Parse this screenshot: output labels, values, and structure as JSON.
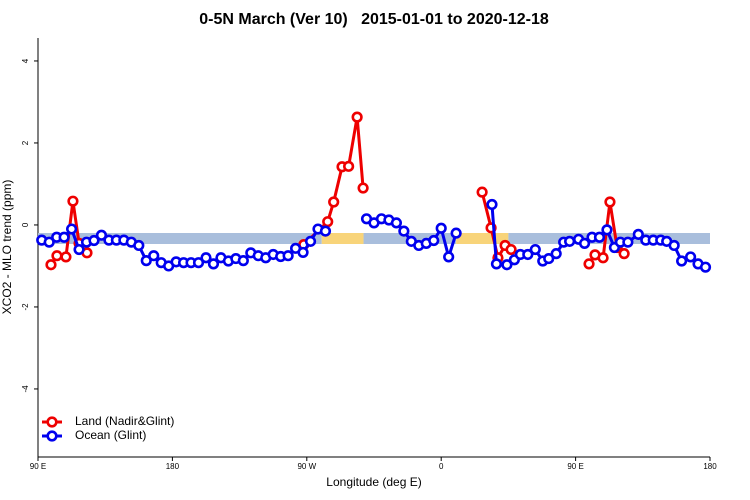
{
  "chart_data": {
    "type": "line",
    "title": "0-5N March (Ver 10)   2015-01-01 to 2020-12-18",
    "x_label": "Longitude (deg E)",
    "y_label": "XCO2 - MLO trend (ppm)",
    "xlim": [
      90,
      540
    ],
    "ylim": [
      -5.66,
      4.56
    ],
    "xticks": [
      {
        "value": 90,
        "label": "90 E"
      },
      180,
      {
        "value": 270,
        "label": "90 W"
      },
      {
        "value": 360,
        "label": "0"
      },
      {
        "value": 450,
        "label": "90 E"
      },
      {
        "value": 540,
        "label": "180"
      }
    ],
    "yticks": [
      -4,
      -2,
      0,
      2,
      4
    ],
    "legend": "bottom-left",
    "background_band": {
      "value": -0.33,
      "segments": [
        {
          "from": 90,
          "to": 280,
          "color": "#a9bedc"
        },
        {
          "from": 280,
          "to": 308,
          "color": "#f8d47a"
        },
        {
          "from": 308,
          "to": 370,
          "color": "#a9bedc"
        },
        {
          "from": 370,
          "to": 405,
          "color": "#f8d47a"
        },
        {
          "from": 405,
          "to": 540,
          "color": "#a9bedc"
        }
      ]
    },
    "series": [
      {
        "name": "Land (Nadir&Glint)",
        "color": "#ee0000",
        "x": [
          98.7,
          102.7,
          108.7,
          113.4,
          117.5,
          122.8,
          null,
          268,
          284,
          288,
          293.6,
          298,
          303.7,
          307.7,
          null,
          387.4,
          393.4,
          398,
          402.8,
          406.8,
          null,
          459,
          463,
          468.4,
          473,
          477.8,
          482.5
        ],
        "values": [
          -0.97,
          -0.75,
          -0.78,
          0.58,
          -0.45,
          -0.68,
          null,
          -0.48,
          0.08,
          0.56,
          1.42,
          1.43,
          2.63,
          0.9,
          null,
          0.8,
          -0.07,
          -0.8,
          -0.5,
          -0.6,
          null,
          -0.95,
          -0.73,
          -0.8,
          0.56,
          -0.55,
          -0.7
        ]
      },
      {
        "name": "Ocean (Glint)",
        "color": "#0000ee",
        "x": [
          92.5,
          97.5,
          102.5,
          107.5,
          112.5,
          117.5,
          122.5,
          127.5,
          132.5,
          137.5,
          142.5,
          147.5,
          152.5,
          157.5,
          162.5,
          167.5,
          172.5,
          177.5,
          182.5,
          187.5,
          192.5,
          197.5,
          202.5,
          207.5,
          212.5,
          217.5,
          222.5,
          227.5,
          232.5,
          237.5,
          242.5,
          247.5,
          252.5,
          257.5,
          262.5,
          267.5,
          272.5,
          277.5,
          282.5,
          null,
          310,
          315,
          320,
          325,
          330,
          335,
          340,
          345,
          350,
          355,
          360,
          365,
          370,
          null,
          394,
          397,
          404,
          409,
          413,
          418,
          423,
          428,
          432,
          437,
          442,
          446,
          452,
          456,
          461,
          466,
          471,
          476,
          480,
          485,
          492,
          497,
          502,
          507,
          511,
          516,
          521,
          527,
          532,
          537
        ],
        "values": [
          -0.37,
          -0.42,
          -0.3,
          -0.3,
          -0.1,
          -0.6,
          -0.42,
          -0.38,
          -0.25,
          -0.37,
          -0.37,
          -0.37,
          -0.42,
          -0.5,
          -0.87,
          -0.75,
          -0.92,
          -1.0,
          -0.9,
          -0.92,
          -0.92,
          -0.92,
          -0.8,
          -0.95,
          -0.8,
          -0.88,
          -0.82,
          -0.87,
          -0.68,
          -0.75,
          -0.8,
          -0.72,
          -0.77,
          -0.75,
          -0.57,
          -0.67,
          -0.4,
          -0.1,
          -0.15,
          null,
          0.15,
          0.05,
          0.15,
          0.12,
          0.05,
          -0.15,
          -0.4,
          -0.5,
          -0.45,
          -0.38,
          -0.08,
          -0.78,
          -0.2,
          null,
          0.5,
          -0.95,
          -0.97,
          -0.85,
          -0.72,
          -0.72,
          -0.6,
          -0.88,
          -0.82,
          -0.7,
          -0.42,
          -0.4,
          -0.35,
          -0.45,
          -0.3,
          -0.3,
          -0.12,
          -0.55,
          -0.42,
          -0.42,
          -0.23,
          -0.37,
          -0.37,
          -0.37,
          -0.4,
          -0.5,
          -0.88,
          -0.78,
          -0.95,
          -1.03
        ]
      }
    ]
  }
}
